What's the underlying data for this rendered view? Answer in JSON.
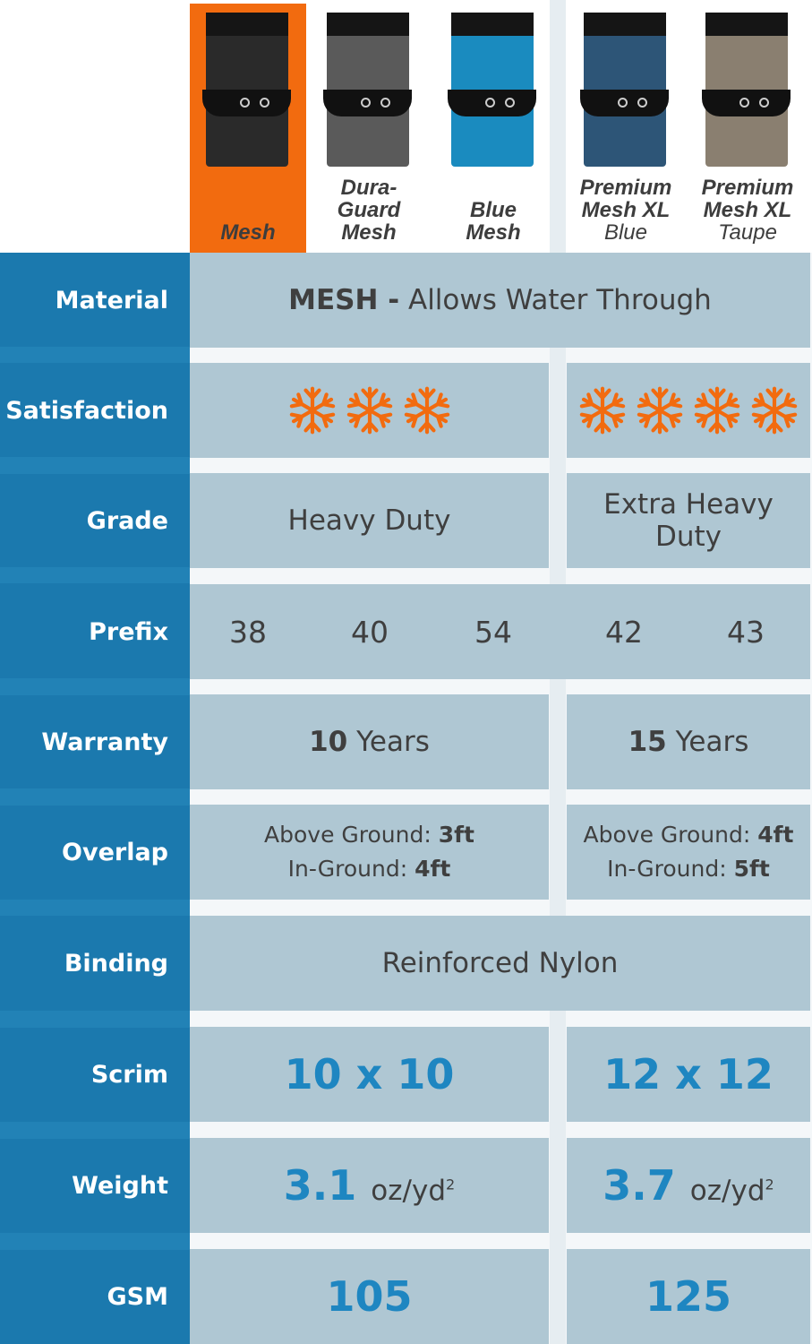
{
  "colors": {
    "accent": "#f26b0f",
    "label_bg": "#1b79ae",
    "cell_bg": "#afc7d3",
    "value_blue": "#1e86c1"
  },
  "products": [
    {
      "name": "Mesh",
      "sub": "",
      "selected": true,
      "swatch": "#2a2a2a"
    },
    {
      "name": "Dura-Guard Mesh",
      "sub": "",
      "selected": false,
      "swatch": "#5a5a5a"
    },
    {
      "name": "Blue Mesh",
      "sub": "",
      "selected": false,
      "swatch": "#1a8bbf"
    },
    {
      "name": "Premium Mesh XL",
      "sub": "Blue",
      "selected": false,
      "swatch": "#2d5577"
    },
    {
      "name": "Premium Mesh XL",
      "sub": "Taupe",
      "selected": false,
      "swatch": "#8a7f70"
    }
  ],
  "rows": {
    "material": {
      "label": "Material",
      "strong": "MESH -",
      "text": "Allows Water Through"
    },
    "satisfaction": {
      "label": "Satisfaction",
      "left_rating": 3,
      "right_rating": 4,
      "icon": "snowflake-icon"
    },
    "grade": {
      "label": "Grade",
      "left": "Heavy Duty",
      "right": "Extra Heavy Duty"
    },
    "prefix": {
      "label": "Prefix",
      "values": [
        "38",
        "40",
        "54",
        "42",
        "43"
      ]
    },
    "warranty": {
      "label": "Warranty",
      "left_num": "10",
      "left_unit": "Years",
      "right_num": "15",
      "right_unit": "Years"
    },
    "overlap": {
      "label": "Overlap",
      "ag_label": "Above Ground:",
      "ig_label": "In-Ground:",
      "left_ag": "3ft",
      "left_ig": "4ft",
      "right_ag": "4ft",
      "right_ig": "5ft"
    },
    "binding": {
      "label": "Binding",
      "value": "Reinforced Nylon"
    },
    "scrim": {
      "label": "Scrim",
      "left": "10 x 10",
      "right": "12 x 12"
    },
    "weight": {
      "label": "Weight",
      "left": "3.1",
      "right": "3.7",
      "unit": "oz/yd",
      "sup": "2"
    },
    "gsm": {
      "label": "GSM",
      "left": "105",
      "right": "125"
    }
  }
}
